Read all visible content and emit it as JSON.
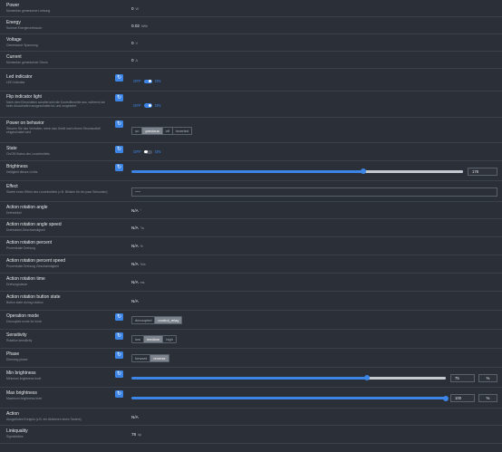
{
  "rows": [
    {
      "kind": "value",
      "name": "Power",
      "desc": "Momentan gemessene Leistung",
      "value": "0",
      "unit": "W"
    },
    {
      "kind": "value",
      "name": "Energy",
      "desc": "Summe Energieverbrauch",
      "value": "0.02",
      "unit": "kWh"
    },
    {
      "kind": "value",
      "name": "Voltage",
      "desc": "Gemessene Spannung",
      "value": "0",
      "unit": "V"
    },
    {
      "kind": "value",
      "name": "Current",
      "desc": "Momentan gemessener Strom",
      "value": "0",
      "unit": "A"
    },
    {
      "kind": "toggle",
      "name": "Led indicator",
      "desc": "LED Indicator",
      "off": "OFF",
      "on": "ON",
      "state": "on",
      "refresh": true
    },
    {
      "kind": "toggle",
      "name": "Flip indicator light",
      "desc": "Nach dem Einschalten schaltet sich die Kontrollleuchte aus, während sie beim Ausschalten ausgeschaltet ist, und umgekehrt",
      "off": "OFF",
      "on": "ON",
      "state": "on",
      "refresh": true
    },
    {
      "kind": "seg",
      "name": "Power on behavior",
      "desc": "Steuern Sie das Verhalten, wenn das Gerät nach einem Stromausfall eingeschaltet wird",
      "options": [
        "on",
        "previous",
        "off",
        "inverted"
      ],
      "selected": 1,
      "refresh": true
    },
    {
      "kind": "toggle",
      "name": "State",
      "desc": "On/Off-Status des Leuchtmittels",
      "off": "OFF",
      "on": "ON",
      "state": "off",
      "refresh": true
    },
    {
      "kind": "slider",
      "name": "Brightness",
      "desc": "Helligkeit dieses Lichts",
      "value": "178",
      "fraction": 0.7,
      "refresh": true
    },
    {
      "kind": "text",
      "name": "Effect",
      "desc": "Startet einen Effekt des Leuchtmittels (z.B. Blinken für ein paar Sekunden)",
      "value": "----"
    },
    {
      "kind": "value",
      "name": "Action rotation angle",
      "desc": "Drehwinkel",
      "value": "N/A",
      "unit": "°"
    },
    {
      "kind": "value",
      "name": "Action rotation angle speed",
      "desc": "Drehwinkel-Geschwindigkeit",
      "value": "N/A",
      "unit": "°/s"
    },
    {
      "kind": "value",
      "name": "Action rotation percent",
      "desc": "Prozentuale Drehung",
      "value": "N/A",
      "unit": "%"
    },
    {
      "kind": "value",
      "name": "Action rotation percent speed",
      "desc": "Prozentuale Drehung Geschwindigkeit",
      "value": "N/A",
      "unit": "%/s"
    },
    {
      "kind": "value",
      "name": "Action rotation time",
      "desc": "Drehungsdauer",
      "value": "N/A",
      "unit": "ms"
    },
    {
      "kind": "value",
      "name": "Action rotation button state",
      "desc": "Button state during rotation",
      "value": "N/A",
      "unit": ""
    },
    {
      "kind": "seg",
      "name": "Operation mode",
      "desc": "Decoupled mode for knob",
      "options": [
        "decoupled",
        "control_relay"
      ],
      "selected": 1,
      "refresh": true
    },
    {
      "kind": "seg",
      "name": "Sensitivity",
      "desc": "Rotation sensitivity",
      "options": [
        "low",
        "medium",
        "high"
      ],
      "selected": 1,
      "refresh": true
    },
    {
      "kind": "seg",
      "name": "Phase",
      "desc": "Dimming phase",
      "options": [
        "forward",
        "reverse"
      ],
      "selected": 1,
      "refresh": true
    },
    {
      "kind": "slider",
      "name": "Min brightness",
      "desc": "Minimum brightness level",
      "value": "75",
      "unit": "%",
      "fraction": 0.75,
      "refresh": true
    },
    {
      "kind": "slider",
      "name": "Max brightness",
      "desc": "Maximum brightness level",
      "value": "100",
      "unit": "%",
      "fraction": 1.0,
      "refresh": true
    },
    {
      "kind": "value",
      "name": "Action",
      "desc": "Ausgelöstes Ereignis (z.B. ein Aktivieren eines Tasters)",
      "value": "N/A",
      "unit": ""
    },
    {
      "kind": "value",
      "name": "Linkquality",
      "desc": "Signalstärke",
      "value": "78",
      "unit": "lqi"
    }
  ]
}
